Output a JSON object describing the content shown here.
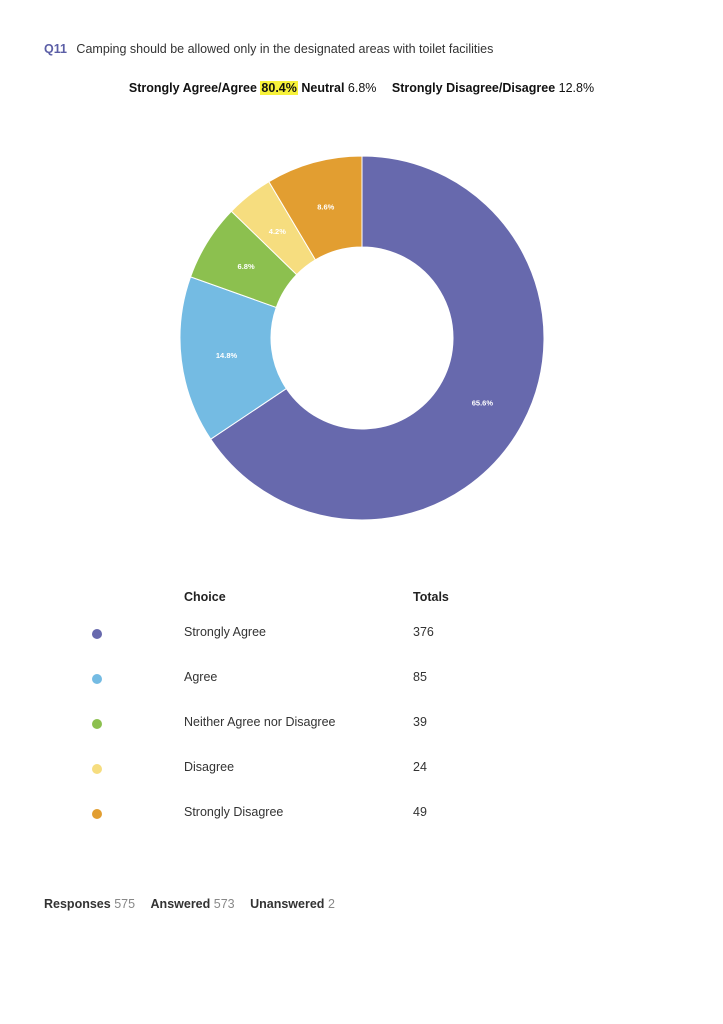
{
  "question": {
    "number": "Q11",
    "text": "Camping should be allowed only in the designated areas with toilet facilities"
  },
  "summary": {
    "agree_label": "Strongly Agree/Agree",
    "agree_value": "80.4%",
    "neutral_label": "Neutral",
    "neutral_value": "6.8%",
    "disagree_label": "Strongly Disagree/Disagree",
    "disagree_value": "12.8%"
  },
  "table": {
    "choice_header": "Choice",
    "totals_header": "Totals"
  },
  "chart_data": {
    "type": "pie",
    "variant": "donut",
    "title": "",
    "categories": [
      "Strongly Agree",
      "Agree",
      "Neither Agree nor Disagree",
      "Disagree",
      "Strongly Disagree"
    ],
    "values": [
      376,
      85,
      39,
      24,
      49
    ],
    "percent_labels": [
      "65.6%",
      "14.8%",
      "6.8%",
      "4.2%",
      "8.6%"
    ],
    "colors": [
      "#6769ad",
      "#74bbe3",
      "#8cc04f",
      "#f6dd7f",
      "#e29e31"
    ],
    "start": "12 o'clock, clockwise",
    "legend": "table below chart"
  },
  "footer": {
    "responses_label": "Responses",
    "responses_value": "575",
    "answered_label": "Answered",
    "answered_value": "573",
    "unanswered_label": "Unanswered",
    "unanswered_value": "2"
  }
}
